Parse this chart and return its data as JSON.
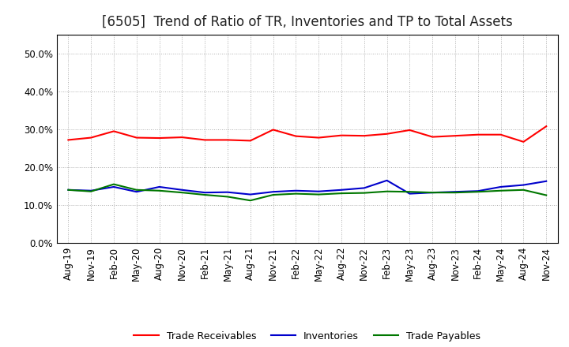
{
  "title": "[6505]  Trend of Ratio of TR, Inventories and TP to Total Assets",
  "x_labels": [
    "Aug-19",
    "Nov-19",
    "Feb-20",
    "May-20",
    "Aug-20",
    "Nov-20",
    "Feb-21",
    "May-21",
    "Aug-21",
    "Nov-21",
    "Feb-22",
    "May-22",
    "Aug-22",
    "Nov-22",
    "Feb-23",
    "May-23",
    "Aug-23",
    "Nov-23",
    "Feb-24",
    "May-24",
    "Aug-24",
    "Nov-24"
  ],
  "trade_receivables": [
    0.272,
    0.278,
    0.295,
    0.278,
    0.277,
    0.279,
    0.272,
    0.272,
    0.27,
    0.299,
    0.282,
    0.278,
    0.284,
    0.283,
    0.288,
    0.298,
    0.28,
    0.283,
    0.286,
    0.286,
    0.267,
    0.308
  ],
  "inventories": [
    0.14,
    0.138,
    0.148,
    0.135,
    0.148,
    0.14,
    0.133,
    0.134,
    0.128,
    0.135,
    0.138,
    0.136,
    0.14,
    0.145,
    0.165,
    0.13,
    0.133,
    0.135,
    0.137,
    0.148,
    0.153,
    0.163
  ],
  "trade_payables": [
    0.14,
    0.136,
    0.155,
    0.14,
    0.138,
    0.133,
    0.127,
    0.122,
    0.112,
    0.127,
    0.13,
    0.128,
    0.131,
    0.132,
    0.136,
    0.135,
    0.133,
    0.133,
    0.135,
    0.138,
    0.14,
    0.126
  ],
  "colors": {
    "trade_receivables": "#ff0000",
    "inventories": "#0000cc",
    "trade_payables": "#007700"
  },
  "ylim": [
    0.0,
    0.55
  ],
  "yticks": [
    0.0,
    0.1,
    0.2,
    0.3,
    0.4,
    0.5
  ],
  "background_color": "#ffffff",
  "grid_color": "#999999",
  "title_fontsize": 12,
  "axis_fontsize": 8.5,
  "legend_labels": [
    "Trade Receivables",
    "Inventories",
    "Trade Payables"
  ]
}
